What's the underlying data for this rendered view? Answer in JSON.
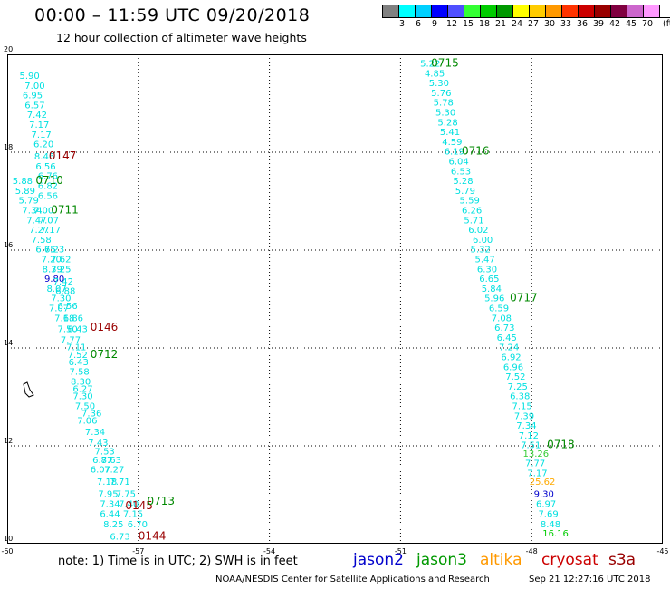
{
  "header": {
    "title": "00:00 – 11:59 UTC 09/20/2018",
    "subtitle": "12 hour collection of altimeter wave heights",
    "unit": "(ft)"
  },
  "colorscale": {
    "colors": [
      "#808080",
      "#00ffff",
      "#00d0ff",
      "#0000ff",
      "#4f4fff",
      "#33ff33",
      "#00cc00",
      "#009900",
      "#ffff00",
      "#ffcc00",
      "#ff9900",
      "#ff3300",
      "#cc0000",
      "#990000",
      "#800040",
      "#cc66cc",
      "#ff99ff",
      "#ffffff"
    ],
    "ticks": [
      "3",
      "6",
      "9",
      "12",
      "15",
      "18",
      "21",
      "24",
      "27",
      "30",
      "33",
      "36",
      "39",
      "42",
      "45",
      "70"
    ]
  },
  "chart_data": {
    "type": "scatter",
    "xlim": [
      -60,
      -45
    ],
    "ylim": [
      10,
      20
    ],
    "xticks": [
      "-60",
      "-57",
      "-54",
      "-51",
      "-48",
      "-45"
    ],
    "yticks": [
      "20",
      "18",
      "16",
      "14",
      "12",
      "10"
    ],
    "grid": true,
    "points": [
      {
        "x": -59.72,
        "y": 19.5,
        "v": "5.90",
        "c": "#00e0e0"
      },
      {
        "x": -59.6,
        "y": 19.3,
        "v": "7.00",
        "c": "#00e0e0"
      },
      {
        "x": -59.65,
        "y": 19.1,
        "v": "6.95",
        "c": "#00e0e0"
      },
      {
        "x": -59.6,
        "y": 18.9,
        "v": "6.57",
        "c": "#00e0e0"
      },
      {
        "x": -59.55,
        "y": 18.7,
        "v": "7.42",
        "c": "#00e0e0"
      },
      {
        "x": -59.5,
        "y": 18.5,
        "v": "7.17",
        "c": "#00e0e0"
      },
      {
        "x": -59.45,
        "y": 18.3,
        "v": "7.17",
        "c": "#00e0e0"
      },
      {
        "x": -59.4,
        "y": 18.1,
        "v": "6.20",
        "c": "#00e0e0"
      },
      {
        "x": -59.38,
        "y": 17.85,
        "v": "8.46",
        "c": "#00e0e0"
      },
      {
        "x": -59.35,
        "y": 17.65,
        "v": "6.56",
        "c": "#00e0e0"
      },
      {
        "x": -59.3,
        "y": 17.45,
        "v": "6.76",
        "c": "#00e0e0"
      },
      {
        "x": -59.88,
        "y": 17.35,
        "v": "5.88",
        "c": "#00e0e0"
      },
      {
        "x": -59.3,
        "y": 17.25,
        "v": "6.82",
        "c": "#00e0e0"
      },
      {
        "x": -59.82,
        "y": 17.15,
        "v": "5.89",
        "c": "#00e0e0"
      },
      {
        "x": -59.3,
        "y": 17.05,
        "v": "6.56",
        "c": "#00e0e0"
      },
      {
        "x": -59.74,
        "y": 16.95,
        "v": "5.79",
        "c": "#00e0e0"
      },
      {
        "x": -59.66,
        "y": 16.75,
        "v": "7.34",
        "c": "#00e0e0"
      },
      {
        "x": -59.4,
        "y": 16.75,
        "v": "7.00",
        "c": "#00e0e0"
      },
      {
        "x": -59.56,
        "y": 16.55,
        "v": "7.47",
        "c": "#00e0e0"
      },
      {
        "x": -59.28,
        "y": 16.55,
        "v": "7.07",
        "c": "#00e0e0"
      },
      {
        "x": -59.5,
        "y": 16.35,
        "v": "7.27",
        "c": "#00e0e0"
      },
      {
        "x": -59.24,
        "y": 16.35,
        "v": "7.17",
        "c": "#00e0e0"
      },
      {
        "x": -59.45,
        "y": 16.15,
        "v": "7.58",
        "c": "#00e0e0"
      },
      {
        "x": -59.35,
        "y": 15.95,
        "v": "6.75",
        "c": "#00e0e0"
      },
      {
        "x": -59.15,
        "y": 15.95,
        "v": "6.23",
        "c": "#00e0e0"
      },
      {
        "x": -59.22,
        "y": 15.75,
        "v": "7.20",
        "c": "#00e0e0"
      },
      {
        "x": -59.0,
        "y": 15.75,
        "v": "7.62",
        "c": "#00e0e0"
      },
      {
        "x": -59.2,
        "y": 15.55,
        "v": "8.39",
        "c": "#00e0e0"
      },
      {
        "x": -59.0,
        "y": 15.55,
        "v": "7.25",
        "c": "#00e0e0"
      },
      {
        "x": -59.15,
        "y": 15.35,
        "v": "9.80",
        "c": "#0000cc"
      },
      {
        "x": -58.95,
        "y": 15.3,
        "v": "7.42",
        "c": "#00e0e0"
      },
      {
        "x": -59.1,
        "y": 15.15,
        "v": "8.07",
        "c": "#00e0e0"
      },
      {
        "x": -58.9,
        "y": 15.1,
        "v": "6.88",
        "c": "#00e0e0"
      },
      {
        "x": -59.0,
        "y": 14.95,
        "v": "7.30",
        "c": "#00e0e0"
      },
      {
        "x": -59.05,
        "y": 14.75,
        "v": "7.07",
        "c": "#00e0e0"
      },
      {
        "x": -58.85,
        "y": 14.8,
        "v": "6.56",
        "c": "#00e0e0"
      },
      {
        "x": -58.92,
        "y": 14.55,
        "v": "7.18",
        "c": "#00e0e0"
      },
      {
        "x": -58.72,
        "y": 14.55,
        "v": "6.86",
        "c": "#00e0e0"
      },
      {
        "x": -58.85,
        "y": 14.32,
        "v": "7.50",
        "c": "#00e0e0"
      },
      {
        "x": -58.62,
        "y": 14.32,
        "v": "6.43",
        "c": "#00e0e0"
      },
      {
        "x": -58.78,
        "y": 14.1,
        "v": "7.77",
        "c": "#00e0e0"
      },
      {
        "x": -58.65,
        "y": 13.95,
        "v": "7.11",
        "c": "#00e0e0"
      },
      {
        "x": -58.62,
        "y": 13.8,
        "v": "7.52",
        "c": "#00e0e0"
      },
      {
        "x": -58.6,
        "y": 13.65,
        "v": "6.43",
        "c": "#00e0e0"
      },
      {
        "x": -58.58,
        "y": 13.45,
        "v": "7.58",
        "c": "#00e0e0"
      },
      {
        "x": -58.55,
        "y": 13.25,
        "v": "8.30",
        "c": "#00e0e0"
      },
      {
        "x": -58.5,
        "y": 13.1,
        "v": "6.27",
        "c": "#00e0e0"
      },
      {
        "x": -58.5,
        "y": 12.95,
        "v": "7.30",
        "c": "#00e0e0"
      },
      {
        "x": -58.45,
        "y": 12.75,
        "v": "7.50",
        "c": "#00e0e0"
      },
      {
        "x": -58.3,
        "y": 12.6,
        "v": "7.36",
        "c": "#00e0e0"
      },
      {
        "x": -58.4,
        "y": 12.45,
        "v": "7.06",
        "c": "#00e0e0"
      },
      {
        "x": -58.22,
        "y": 12.22,
        "v": "7.34",
        "c": "#00e0e0"
      },
      {
        "x": -58.15,
        "y": 12.0,
        "v": "7.43",
        "c": "#00e0e0"
      },
      {
        "x": -58.0,
        "y": 11.82,
        "v": "7.53",
        "c": "#00e0e0"
      },
      {
        "x": -58.05,
        "y": 11.65,
        "v": "6.87",
        "c": "#00e0e0"
      },
      {
        "x": -57.85,
        "y": 11.65,
        "v": "7.63",
        "c": "#00e0e0"
      },
      {
        "x": -58.1,
        "y": 11.45,
        "v": "6.07",
        "c": "#00e0e0"
      },
      {
        "x": -57.78,
        "y": 11.45,
        "v": "7.27",
        "c": "#00e0e0"
      },
      {
        "x": -57.95,
        "y": 11.2,
        "v": "7.18",
        "c": "#00e0e0"
      },
      {
        "x": -57.65,
        "y": 11.2,
        "v": "7.71",
        "c": "#00e0e0"
      },
      {
        "x": -57.92,
        "y": 10.95,
        "v": "7.95",
        "c": "#00e0e0"
      },
      {
        "x": -57.52,
        "y": 10.95,
        "v": "7.75",
        "c": "#00e0e0"
      },
      {
        "x": -57.88,
        "y": 10.75,
        "v": "7.34",
        "c": "#00e0e0"
      },
      {
        "x": -57.45,
        "y": 10.75,
        "v": "7.40",
        "c": "#00e0e0"
      },
      {
        "x": -57.88,
        "y": 10.55,
        "v": "6.44",
        "c": "#00e0e0"
      },
      {
        "x": -57.35,
        "y": 10.55,
        "v": "7.15",
        "c": "#00e0e0"
      },
      {
        "x": -57.8,
        "y": 10.33,
        "v": "8.25",
        "c": "#00e0e0"
      },
      {
        "x": -57.25,
        "y": 10.33,
        "v": "6.70",
        "c": "#00e0e0"
      },
      {
        "x": -57.65,
        "y": 10.08,
        "v": "6.73",
        "c": "#00e0e0"
      },
      {
        "x": -50.55,
        "y": 19.75,
        "v": "5.22",
        "c": "#00e0e0"
      },
      {
        "x": -50.45,
        "y": 19.55,
        "v": "4.85",
        "c": "#00e0e0"
      },
      {
        "x": -50.35,
        "y": 19.35,
        "v": "5.30",
        "c": "#00e0e0"
      },
      {
        "x": -50.3,
        "y": 19.15,
        "v": "5.76",
        "c": "#00e0e0"
      },
      {
        "x": -50.25,
        "y": 18.95,
        "v": "5.78",
        "c": "#00e0e0"
      },
      {
        "x": -50.2,
        "y": 18.75,
        "v": "5.30",
        "c": "#00e0e0"
      },
      {
        "x": -50.15,
        "y": 18.55,
        "v": "5.28",
        "c": "#00e0e0"
      },
      {
        "x": -50.1,
        "y": 18.35,
        "v": "5.41",
        "c": "#00e0e0"
      },
      {
        "x": -50.05,
        "y": 18.15,
        "v": "4.59",
        "c": "#00e0e0"
      },
      {
        "x": -50.0,
        "y": 17.95,
        "v": "6.19",
        "c": "#00e0e0"
      },
      {
        "x": -49.9,
        "y": 17.75,
        "v": "6.04",
        "c": "#00e0e0"
      },
      {
        "x": -49.85,
        "y": 17.55,
        "v": "6.53",
        "c": "#00e0e0"
      },
      {
        "x": -49.8,
        "y": 17.35,
        "v": "5.28",
        "c": "#00e0e0"
      },
      {
        "x": -49.75,
        "y": 17.15,
        "v": "5.79",
        "c": "#00e0e0"
      },
      {
        "x": -49.65,
        "y": 16.95,
        "v": "5.59",
        "c": "#00e0e0"
      },
      {
        "x": -49.6,
        "y": 16.75,
        "v": "6.26",
        "c": "#00e0e0"
      },
      {
        "x": -49.55,
        "y": 16.55,
        "v": "5.71",
        "c": "#00e0e0"
      },
      {
        "x": -49.45,
        "y": 16.35,
        "v": "6.02",
        "c": "#00e0e0"
      },
      {
        "x": -49.35,
        "y": 16.15,
        "v": "6.00",
        "c": "#00e0e0"
      },
      {
        "x": -49.4,
        "y": 15.95,
        "v": "5.32",
        "c": "#00e0e0"
      },
      {
        "x": -49.3,
        "y": 15.75,
        "v": "5.47",
        "c": "#00e0e0"
      },
      {
        "x": -49.25,
        "y": 15.55,
        "v": "6.30",
        "c": "#00e0e0"
      },
      {
        "x": -49.2,
        "y": 15.35,
        "v": "6.65",
        "c": "#00e0e0"
      },
      {
        "x": -49.15,
        "y": 15.15,
        "v": "5.84",
        "c": "#00e0e0"
      },
      {
        "x": -49.08,
        "y": 14.95,
        "v": "5.96",
        "c": "#00e0e0"
      },
      {
        "x": -48.98,
        "y": 14.75,
        "v": "6.59",
        "c": "#00e0e0"
      },
      {
        "x": -48.92,
        "y": 14.55,
        "v": "7.08",
        "c": "#00e0e0"
      },
      {
        "x": -48.85,
        "y": 14.35,
        "v": "6.73",
        "c": "#00e0e0"
      },
      {
        "x": -48.8,
        "y": 14.15,
        "v": "6.45",
        "c": "#00e0e0"
      },
      {
        "x": -48.75,
        "y": 13.95,
        "v": "7.24",
        "c": "#00e0e0"
      },
      {
        "x": -48.7,
        "y": 13.75,
        "v": "6.92",
        "c": "#00e0e0"
      },
      {
        "x": -48.65,
        "y": 13.55,
        "v": "6.96",
        "c": "#00e0e0"
      },
      {
        "x": -48.6,
        "y": 13.35,
        "v": "7.52",
        "c": "#00e0e0"
      },
      {
        "x": -48.55,
        "y": 13.15,
        "v": "7.25",
        "c": "#00e0e0"
      },
      {
        "x": -48.5,
        "y": 12.95,
        "v": "6.38",
        "c": "#00e0e0"
      },
      {
        "x": -48.45,
        "y": 12.75,
        "v": "7.15",
        "c": "#00e0e0"
      },
      {
        "x": -48.4,
        "y": 12.55,
        "v": "7.39",
        "c": "#00e0e0"
      },
      {
        "x": -48.35,
        "y": 12.35,
        "v": "7.34",
        "c": "#00e0e0"
      },
      {
        "x": -48.3,
        "y": 12.15,
        "v": "7.12",
        "c": "#00e0e0"
      },
      {
        "x": -48.25,
        "y": 11.95,
        "v": "7.51",
        "c": "#00e0e0"
      },
      {
        "x": -48.2,
        "y": 11.78,
        "v": "13.26",
        "c": "#33cc33"
      },
      {
        "x": -48.15,
        "y": 11.58,
        "v": "7.77",
        "c": "#00e0e0"
      },
      {
        "x": -48.1,
        "y": 11.38,
        "v": "7.17",
        "c": "#00e0e0"
      },
      {
        "x": -48.05,
        "y": 11.2,
        "v": "25.62",
        "c": "#ffaa00"
      },
      {
        "x": -47.95,
        "y": 10.95,
        "v": "9.30",
        "c": "#0000cc"
      },
      {
        "x": -47.9,
        "y": 10.75,
        "v": "6.97",
        "c": "#00e0e0"
      },
      {
        "x": -47.85,
        "y": 10.55,
        "v": "7.69",
        "c": "#00e0e0"
      },
      {
        "x": -47.8,
        "y": 10.33,
        "v": "8.48",
        "c": "#00e0e0"
      },
      {
        "x": -47.75,
        "y": 10.15,
        "v": "16.16",
        "c": "#00cc00"
      }
    ],
    "times": [
      {
        "x": -59.05,
        "y": 17.85,
        "t": "0147",
        "c": "#990000"
      },
      {
        "x": -59.35,
        "y": 17.35,
        "t": "0710",
        "c": "#008800"
      },
      {
        "x": -59.0,
        "y": 16.75,
        "t": "0711",
        "c": "#008800"
      },
      {
        "x": -58.1,
        "y": 14.35,
        "t": "0146",
        "c": "#990000"
      },
      {
        "x": -58.1,
        "y": 13.8,
        "t": "0712",
        "c": "#008800"
      },
      {
        "x": -57.3,
        "y": 10.7,
        "t": "0145",
        "c": "#990000"
      },
      {
        "x": -56.8,
        "y": 10.8,
        "t": "0713",
        "c": "#008800"
      },
      {
        "x": -57.0,
        "y": 10.08,
        "t": "0144",
        "c": "#990000"
      },
      {
        "x": -50.3,
        "y": 19.75,
        "t": "0715",
        "c": "#008800"
      },
      {
        "x": -49.6,
        "y": 17.95,
        "t": "0716",
        "c": "#008800"
      },
      {
        "x": -48.5,
        "y": 14.95,
        "t": "0717",
        "c": "#008800"
      },
      {
        "x": -47.65,
        "y": 11.95,
        "t": "0718",
        "c": "#008800"
      }
    ]
  },
  "footer": {
    "note": "note:  1) Time is in UTC;  2) SWH is in feet",
    "credit": "NOAA/NESDIS Center for Satellite Applications and Research",
    "timestamp": "Sep 21 12:27:16 UTC 2018",
    "legend": [
      {
        "name": "jason2",
        "color": "#0000cc"
      },
      {
        "name": "jason3",
        "color": "#009900"
      },
      {
        "name": "altika",
        "color": "#ff9900"
      },
      {
        "name": "cryosat",
        "color": "#cc0000"
      },
      {
        "name": "s3a",
        "color": "#990000"
      }
    ]
  }
}
